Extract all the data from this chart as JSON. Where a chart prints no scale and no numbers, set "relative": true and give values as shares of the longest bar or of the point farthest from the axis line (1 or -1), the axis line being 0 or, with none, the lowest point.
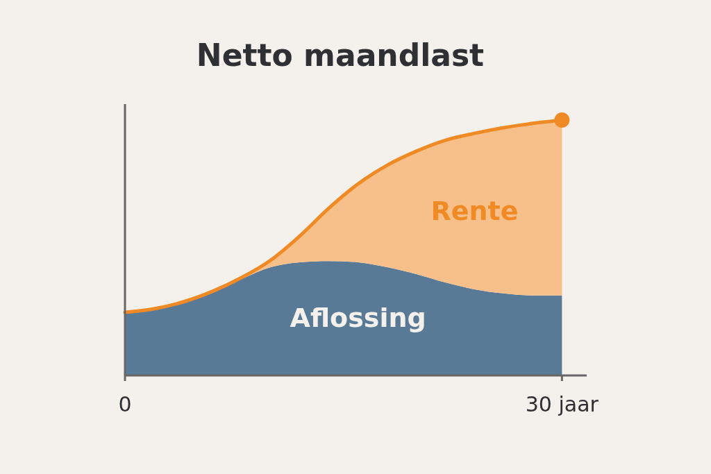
{
  "chart_data": {
    "type": "area",
    "title": "Netto maandlast",
    "stacked": true,
    "relative": true,
    "x": [
      0,
      2,
      4,
      6,
      8,
      10,
      12,
      14,
      16,
      18,
      20,
      22,
      24,
      26,
      28,
      30
    ],
    "xlim": [
      0,
      31.7
    ],
    "xticks": [
      {
        "value": 0,
        "label": "0"
      },
      {
        "value": 30,
        "label": "30 jaar"
      }
    ],
    "series": [
      {
        "name": "Aflossing",
        "color": "#587a96",
        "values": [
          0.247,
          0.261,
          0.288,
          0.329,
          0.378,
          0.424,
          0.443,
          0.448,
          0.443,
          0.424,
          0.397,
          0.364,
          0.337,
          0.321,
          0.313,
          0.313
        ]
      },
      {
        "name": "Rente",
        "color": "#f7c08a",
        "values": [
          0,
          0,
          0,
          0,
          0.005,
          0.027,
          0.103,
          0.207,
          0.307,
          0.399,
          0.481,
          0.557,
          0.611,
          0.649,
          0.674,
          0.687
        ]
      }
    ]
  }
}
